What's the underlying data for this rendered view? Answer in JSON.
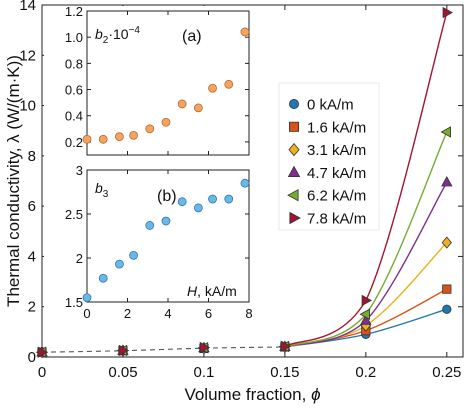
{
  "chart_data": [
    {
      "type": "line",
      "xlabel_main": "Volume fraction, ",
      "xlabel_sym": "ϕ",
      "ylabel": "Thermal conductivity, λ (W/(m·K))",
      "xlim": [
        0,
        0.26
      ],
      "ylim": [
        0,
        14
      ],
      "xticks": [
        0,
        0.05,
        0.1,
        0.15,
        0.2,
        0.25
      ],
      "xtick_labels": [
        "0",
        "0.05",
        "0.1",
        "0.15",
        "0.2",
        "0.25"
      ],
      "yticks": [
        0,
        2,
        4,
        6,
        8,
        10,
        12,
        14
      ],
      "ytick_labels": [
        "0",
        "2",
        "4",
        "6",
        "8",
        "10",
        "12",
        "14"
      ],
      "grid": false,
      "legend_position": "right",
      "dashed_segment": {
        "x": [
          0,
          0.05,
          0.1,
          0.15
        ],
        "y": [
          0.19,
          0.25,
          0.35,
          0.4
        ],
        "color": "#555555"
      },
      "series": [
        {
          "name": "0 kA/m",
          "marker": "circle",
          "color": "#1f77b4",
          "x": [
            0,
            0.05,
            0.1,
            0.15,
            0.2,
            0.25
          ],
          "y": [
            0.19,
            0.25,
            0.33,
            0.4,
            0.9,
            1.9
          ]
        },
        {
          "name": "1.6 kA/m",
          "marker": "square",
          "color": "#d95319",
          "x": [
            0,
            0.05,
            0.1,
            0.15,
            0.2,
            0.25
          ],
          "y": [
            0.19,
            0.25,
            0.34,
            0.4,
            1.05,
            2.7
          ]
        },
        {
          "name": "3.1 kA/m",
          "marker": "diamond",
          "color": "#edb120",
          "x": [
            0,
            0.05,
            0.1,
            0.15,
            0.2,
            0.25
          ],
          "y": [
            0.19,
            0.25,
            0.35,
            0.4,
            1.25,
            4.55
          ]
        },
        {
          "name": "4.7 kA/m",
          "marker": "triangle-up",
          "color": "#7e2f8e",
          "x": [
            0,
            0.05,
            0.1,
            0.15,
            0.2,
            0.25
          ],
          "y": [
            0.19,
            0.25,
            0.36,
            0.41,
            1.45,
            6.95
          ]
        },
        {
          "name": "6.2 kA/m",
          "marker": "triangle-left",
          "color": "#77ac30",
          "x": [
            0,
            0.05,
            0.1,
            0.15,
            0.2,
            0.25
          ],
          "y": [
            0.19,
            0.26,
            0.37,
            0.42,
            1.7,
            8.95
          ]
        },
        {
          "name": "7.8 kA/m",
          "marker": "triangle-right",
          "color": "#a2142f",
          "x": [
            0,
            0.05,
            0.1,
            0.15,
            0.2,
            0.25
          ],
          "y": [
            0.19,
            0.26,
            0.38,
            0.43,
            2.25,
            13.7
          ]
        }
      ]
    },
    {
      "type": "scatter",
      "panel_label": "(a)",
      "ylabel_base": "b",
      "ylabel_sub": "2",
      "ylabel_tail": "·10",
      "ylabel_sup": "−4",
      "xlim": [
        0,
        8
      ],
      "ylim": [
        0.1,
        1.2
      ],
      "yticks": [
        0.2,
        0.4,
        0.6,
        0.8,
        1.0,
        1.2
      ],
      "ytick_labels": [
        "0.2",
        "0.4",
        "0.6",
        "0.8",
        "1.0",
        "1.2"
      ],
      "xticks": [
        0,
        2,
        4,
        6,
        8
      ],
      "color": "#f4a460",
      "stroke": "#b8692a",
      "x": [
        0,
        0.8,
        1.6,
        2.3,
        3.1,
        3.9,
        4.7,
        5.5,
        6.2,
        7.0,
        7.8
      ],
      "y": [
        0.22,
        0.22,
        0.24,
        0.25,
        0.3,
        0.35,
        0.49,
        0.46,
        0.61,
        0.64,
        1.04
      ]
    },
    {
      "type": "scatter",
      "panel_label": "(b)",
      "ylabel_base": "b",
      "ylabel_sub": "3",
      "xlabel_sym": "H",
      "xlabel_unit": ", kA/m",
      "xlim": [
        0,
        8
      ],
      "ylim": [
        1.5,
        3.0
      ],
      "yticks": [
        1.5,
        2,
        2.5,
        3
      ],
      "ytick_labels": [
        "1.5",
        "2",
        "2.5",
        "3"
      ],
      "xticks": [
        0,
        2,
        4,
        6,
        8
      ],
      "xtick_labels": [
        "0",
        "2",
        "4",
        "6",
        "8"
      ],
      "color": "#6bb8e8",
      "stroke": "#2a78b0",
      "x": [
        0,
        0.8,
        1.6,
        2.3,
        3.1,
        3.9,
        4.7,
        5.5,
        6.2,
        7.0,
        7.8
      ],
      "y": [
        1.55,
        1.77,
        1.93,
        2.03,
        2.37,
        2.42,
        2.64,
        2.57,
        2.67,
        2.67,
        2.85
      ]
    }
  ]
}
